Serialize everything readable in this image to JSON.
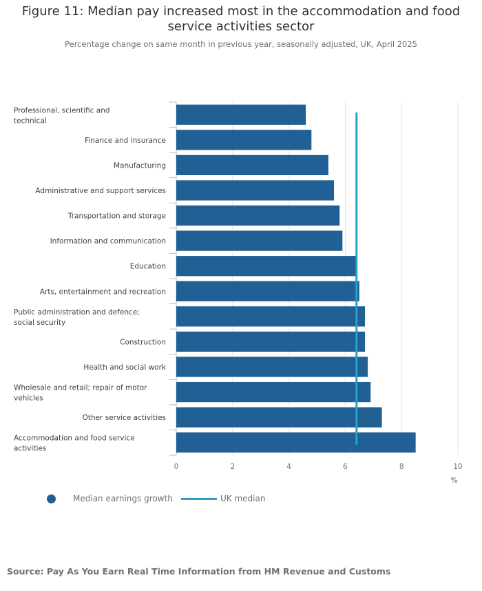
{
  "header": {
    "title": "Figure 11: Median pay increased most in the accommodation and food service activities sector",
    "subtitle": "Percentage change on same month in previous year, seasonally adjusted, UK, April 2025"
  },
  "colors": {
    "bar": "#206095",
    "median_line": "#27a0cc",
    "grid": "#e4e4e4",
    "axis_text": "#707071"
  },
  "legend": {
    "bars_label": "Median earnings growth",
    "bars_icon": "circle-icon",
    "line_label": "UK median",
    "line_icon": "line-icon"
  },
  "source": "Source: Pay As You Earn Real Time Information from HM Revenue and Customs",
  "chart_data": {
    "type": "bar",
    "orientation": "horizontal",
    "categories": [
      "Professional, scientific and technical",
      "Finance and insurance",
      "Manufacturing",
      "Administrative and support services",
      "Transportation and storage",
      "Information and communication",
      "Education",
      "Arts, entertainment and recreation",
      "Public administration and defence; social security",
      "Construction",
      "Health and social work",
      "Wholesale and retail; repair of motor vehicles",
      "Other service activities",
      "Accommodation and food service activities"
    ],
    "series": [
      {
        "name": "Median earnings growth",
        "values": [
          4.6,
          4.8,
          5.4,
          5.6,
          5.8,
          5.9,
          6.4,
          6.5,
          6.7,
          6.7,
          6.8,
          6.9,
          7.3,
          8.5
        ]
      }
    ],
    "reference_line": {
      "name": "UK median",
      "value": 6.4
    },
    "xlim": [
      0,
      10
    ],
    "xticks": [
      0,
      2,
      4,
      6,
      8,
      10
    ],
    "xlabel": "%",
    "grid": true,
    "legend_position": "bottom-left"
  }
}
